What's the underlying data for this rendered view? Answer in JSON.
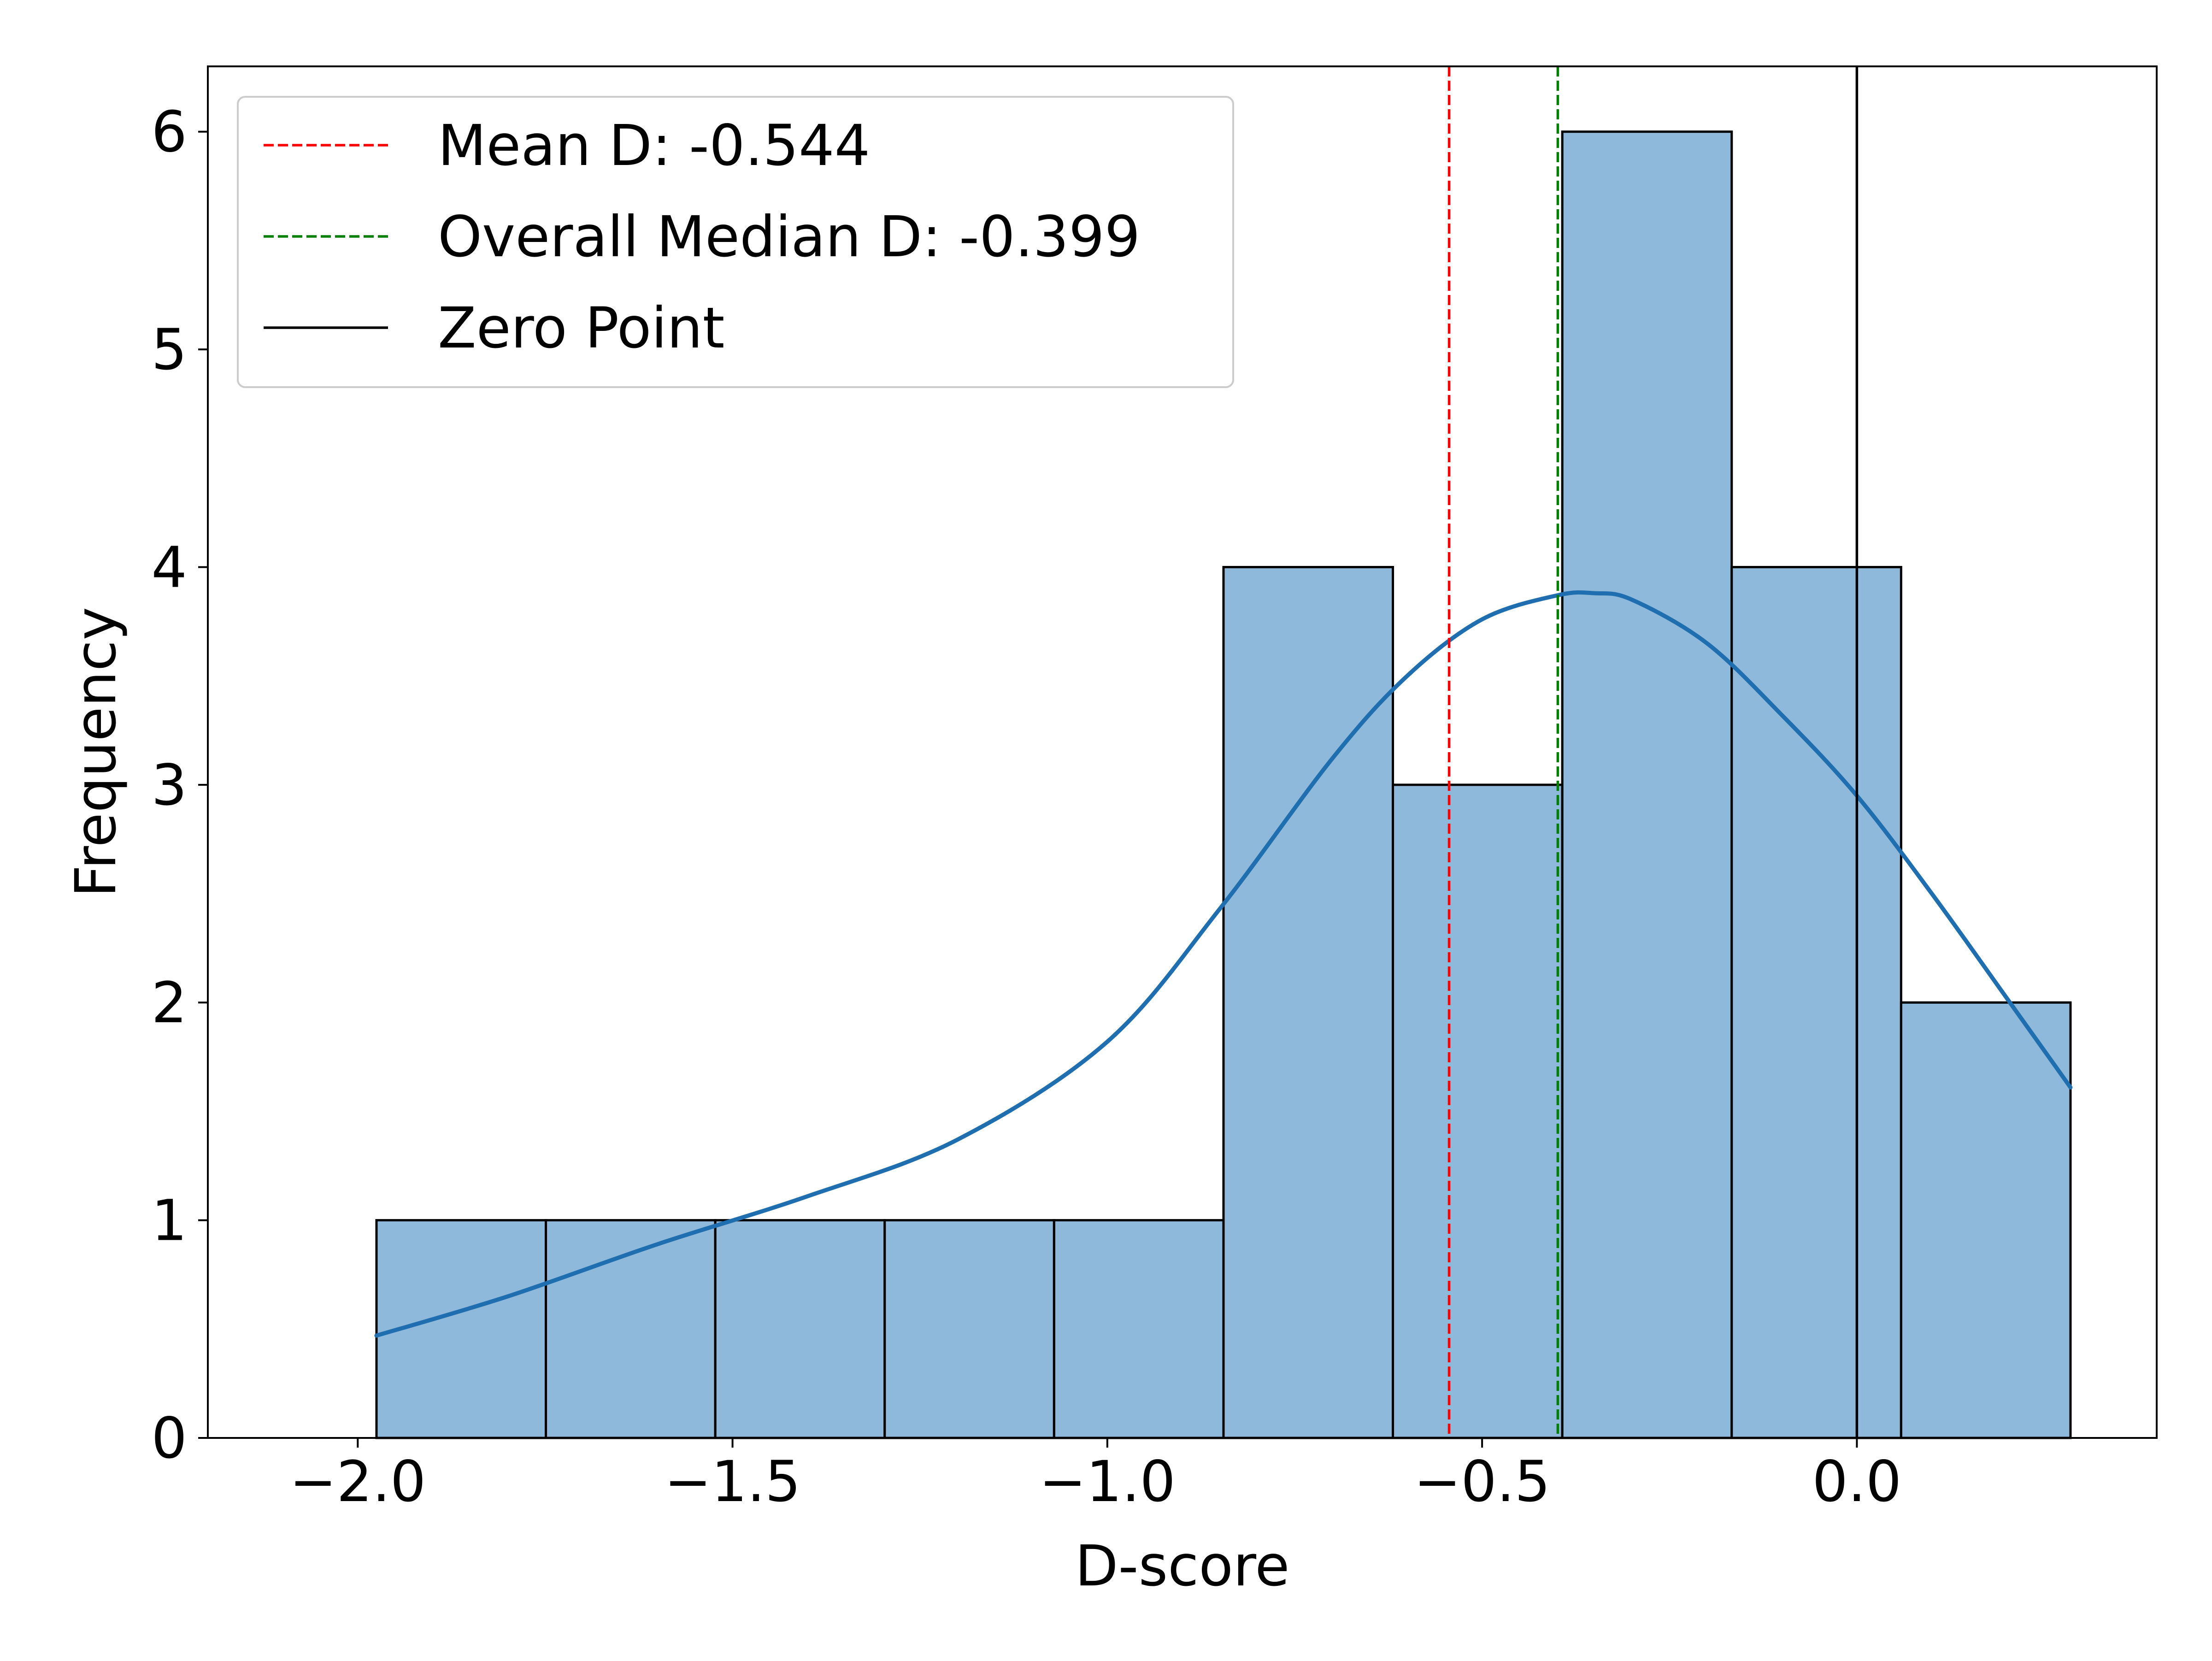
{
  "chart_data": {
    "type": "bar",
    "subtype": "histogram-with-kde",
    "title": "",
    "xlabel": "D-score",
    "ylabel": "Frequency",
    "xlim": [
      -2.2,
      0.4
    ],
    "ylim": [
      0,
      6.3
    ],
    "x_ticks": [
      -2.0,
      -1.5,
      -1.0,
      -0.5,
      0.0
    ],
    "x_tick_labels": [
      "−2.0",
      "−1.5",
      "−1.0",
      "−0.5",
      "0.0"
    ],
    "y_ticks": [
      0,
      1,
      2,
      3,
      4,
      5,
      6
    ],
    "y_tick_labels": [
      "0",
      "1",
      "2",
      "3",
      "4",
      "5",
      "6"
    ],
    "grid": false,
    "legend_position": "top-left",
    "bins": [
      {
        "x0": -1.975,
        "x1": -1.749,
        "count": 1
      },
      {
        "x0": -1.749,
        "x1": -1.523,
        "count": 1
      },
      {
        "x0": -1.523,
        "x1": -1.297,
        "count": 1
      },
      {
        "x0": -1.297,
        "x1": -1.071,
        "count": 1
      },
      {
        "x0": -1.071,
        "x1": -0.845,
        "count": 1
      },
      {
        "x0": -0.845,
        "x1": -0.619,
        "count": 4
      },
      {
        "x0": -0.619,
        "x1": -0.393,
        "count": 3
      },
      {
        "x0": -0.393,
        "x1": -0.167,
        "count": 6
      },
      {
        "x0": -0.167,
        "x1": 0.059,
        "count": 4
      },
      {
        "x0": 0.059,
        "x1": 0.285,
        "count": 2
      }
    ],
    "kde": {
      "x": [
        -1.975,
        -1.8,
        -1.6,
        -1.4,
        -1.2,
        -1.0,
        -0.85,
        -0.7,
        -0.6,
        -0.5,
        -0.4,
        -0.35,
        -0.3,
        -0.2,
        -0.1,
        0.0,
        0.1,
        0.2,
        0.285
      ],
      "y": [
        0.47,
        0.65,
        0.89,
        1.11,
        1.37,
        1.82,
        2.43,
        3.12,
        3.5,
        3.76,
        3.87,
        3.88,
        3.85,
        3.65,
        3.32,
        2.95,
        2.5,
        2.02,
        1.61
      ]
    },
    "reference_lines": [
      {
        "name": "Mean D: -0.544",
        "x": -0.544,
        "color": "#ff0000",
        "style": "dashed"
      },
      {
        "name": "Overall Median D: -0.399",
        "x": -0.399,
        "color": "#008000",
        "style": "dashed"
      },
      {
        "name": "Zero Point",
        "x": 0.0,
        "color": "#000000",
        "style": "solid"
      }
    ],
    "colors": {
      "bar_fill": "#8fb9da",
      "bar_edge": "#000000",
      "kde_line": "#1f6fb0",
      "axes": "#000000"
    }
  }
}
